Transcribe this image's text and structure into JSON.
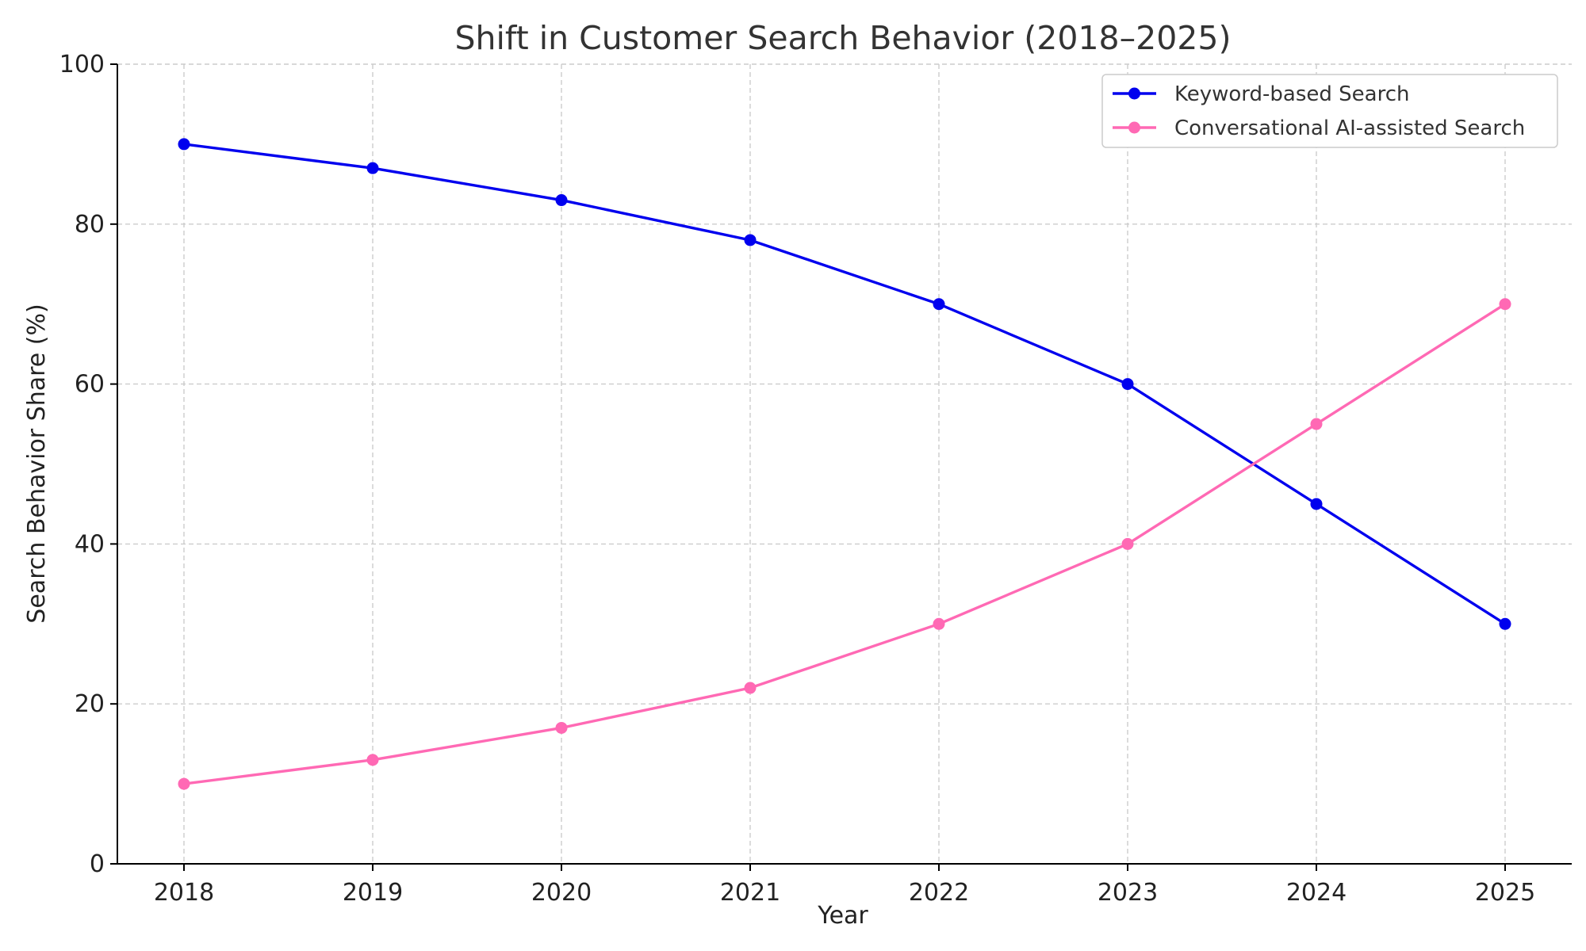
{
  "chart_data": {
    "type": "line",
    "title": "Shift in Customer Search Behavior (2018–2025)",
    "xlabel": "Year",
    "ylabel": "Search Behavior Share (%)",
    "x": [
      2018,
      2019,
      2020,
      2021,
      2022,
      2023,
      2024,
      2025
    ],
    "x_tick_labels": [
      "2018",
      "2019",
      "2020",
      "2021",
      "2022",
      "2023",
      "2024",
      "2025"
    ],
    "ylim": [
      0,
      100
    ],
    "y_ticks": [
      0,
      20,
      40,
      60,
      80,
      100
    ],
    "y_tick_labels": [
      "0",
      "20",
      "40",
      "60",
      "80",
      "100"
    ],
    "grid": true,
    "legend_position": "top-right",
    "series": [
      {
        "name": "Keyword-based Search",
        "color": "#0000ee",
        "marker": "circle",
        "values": [
          90,
          87,
          83,
          78,
          70,
          60,
          45,
          30
        ]
      },
      {
        "name": "Conversational AI-assisted Search",
        "color": "#ff69b4",
        "marker": "circle",
        "values": [
          10,
          13,
          17,
          22,
          30,
          40,
          55,
          70
        ]
      }
    ]
  }
}
